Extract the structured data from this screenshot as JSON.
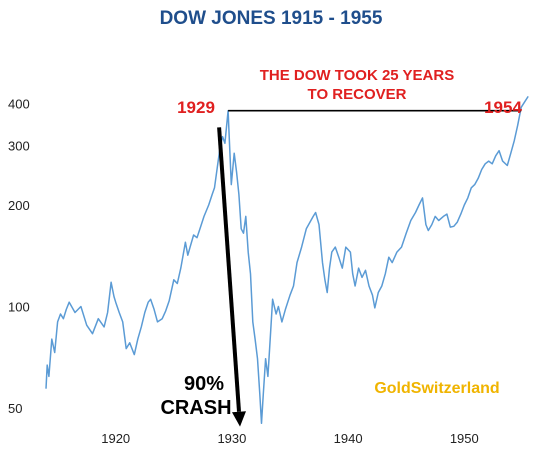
{
  "chart_data": {
    "type": "line",
    "title": "DOW JONES 1915 - 1955",
    "scale": "log",
    "xlim": [
      1914,
      1956
    ],
    "ylim": [
      43,
      430
    ],
    "x_ticks": [
      1920,
      1930,
      1940,
      1950
    ],
    "y_ticks": [
      50,
      100,
      200,
      300,
      400
    ],
    "grid": false,
    "colors": {
      "line": "#5b9bd5",
      "title": "#1f4e8c",
      "annotation": "#e02020",
      "watermark": "#f0b400"
    },
    "series": [
      {
        "x": [
          1914.0,
          1914.1,
          1914.25,
          1914.5,
          1914.75,
          1915.0,
          1915.25,
          1915.5,
          1915.75,
          1916.0,
          1916.5,
          1917.0,
          1917.5,
          1917.8,
          1918.0,
          1918.5,
          1919.0,
          1919.3,
          1919.6,
          1919.85,
          1920.0,
          1920.3,
          1920.6,
          1920.9,
          1921.2,
          1921.6,
          1921.9,
          1922.2,
          1922.5,
          1922.8,
          1923.0,
          1923.3,
          1923.6,
          1924.0,
          1924.3,
          1924.6,
          1925.0,
          1925.3,
          1925.6,
          1926.0,
          1926.2,
          1926.4,
          1926.7,
          1927.0,
          1927.3,
          1927.6,
          1928.0,
          1928.3,
          1928.5,
          1928.75,
          1929.0,
          1929.2,
          1929.4,
          1929.67,
          1929.8,
          1929.95,
          1930.2,
          1930.4,
          1930.6,
          1930.8,
          1931.0,
          1931.2,
          1931.4,
          1931.6,
          1931.8,
          1932.0,
          1932.2,
          1932.4,
          1932.55,
          1932.7,
          1932.9,
          1933.1,
          1933.3,
          1933.5,
          1933.8,
          1934.0,
          1934.3,
          1934.6,
          1935.0,
          1935.3,
          1935.6,
          1936.0,
          1936.4,
          1936.8,
          1937.0,
          1937.2,
          1937.5,
          1937.8,
          1938.0,
          1938.2,
          1938.4,
          1938.6,
          1938.9,
          1939.2,
          1939.5,
          1939.8,
          1940.2,
          1940.4,
          1940.6,
          1940.9,
          1941.2,
          1941.5,
          1941.8,
          1942.1,
          1942.3,
          1942.6,
          1942.9,
          1943.2,
          1943.5,
          1943.8,
          1944.2,
          1944.6,
          1945.0,
          1945.4,
          1945.8,
          1946.1,
          1946.4,
          1946.7,
          1946.9,
          1947.2,
          1947.5,
          1947.8,
          1948.2,
          1948.5,
          1948.8,
          1949.1,
          1949.4,
          1949.7,
          1950.0,
          1950.3,
          1950.6,
          1950.9,
          1951.2,
          1951.5,
          1951.8,
          1952.1,
          1952.4,
          1952.7,
          1953.0,
          1953.3,
          1953.7,
          1954.0,
          1954.3,
          1954.6,
          1954.9,
          1955.2,
          1955.5
        ],
        "y": [
          57,
          67,
          62,
          80,
          73,
          90,
          95,
          92,
          98,
          103,
          96,
          100,
          88,
          85,
          83,
          92,
          87,
          96,
          118,
          107,
          103,
          96,
          90,
          75,
          78,
          72,
          80,
          87,
          96,
          103,
          105,
          98,
          90,
          92,
          97,
          104,
          120,
          117,
          130,
          155,
          142,
          150,
          163,
          160,
          172,
          185,
          200,
          215,
          225,
          260,
          300,
          319,
          305,
          381,
          300,
          230,
          285,
          250,
          215,
          170,
          165,
          185,
          145,
          125,
          90,
          80,
          70,
          55,
          45,
          55,
          70,
          62,
          80,
          105,
          95,
          100,
          90,
          98,
          108,
          115,
          135,
          150,
          170,
          180,
          185,
          190,
          175,
          135,
          120,
          110,
          130,
          145,
          150,
          140,
          130,
          150,
          145,
          125,
          115,
          130,
          122,
          128,
          115,
          108,
          99,
          110,
          115,
          125,
          140,
          135,
          145,
          150,
          165,
          180,
          190,
          200,
          210,
          175,
          168,
          175,
          185,
          180,
          185,
          188,
          172,
          173,
          178,
          188,
          200,
          210,
          225,
          230,
          240,
          255,
          265,
          270,
          265,
          280,
          290,
          270,
          262,
          285,
          310,
          345,
          390,
          405,
          420
        ]
      }
    ],
    "annotations": {
      "peak_year": "1929",
      "recovery_year": "1954",
      "recovery_text_1": "THE DOW TOOK 25 YEARS",
      "recovery_text_2": "TO RECOVER",
      "crash_text_1": "90%",
      "crash_text_2": "CRASH",
      "watermark": "GoldSwitzerland",
      "recovery_level": 381,
      "recovery_start_x": 1929.67,
      "recovery_end_x": 1954.9,
      "crash_from": [
        1928.9,
        340
      ],
      "crash_to": [
        1930.7,
        44
      ]
    }
  }
}
